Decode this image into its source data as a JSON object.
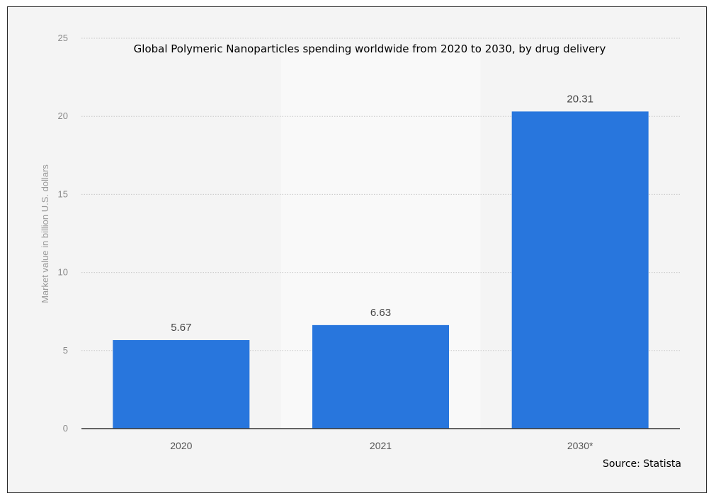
{
  "chart_data": {
    "type": "bar",
    "title": "Global Polymeric Nanoparticles spending worldwide from 2020 to 2030, by drug delivery",
    "xlabel": "",
    "ylabel": "Market value in billion U.S. dollars",
    "categories": [
      "2020",
      "2021",
      "2030*"
    ],
    "values": [
      5.67,
      6.63,
      20.31
    ],
    "data_labels": [
      "5.67",
      "6.63",
      "20.31"
    ],
    "ylim": [
      0,
      25
    ],
    "yticks": [
      "0",
      "5",
      "10",
      "15",
      "20",
      "25"
    ],
    "grid": "horizontal dotted",
    "bar_color": "#2876dd",
    "highlight_band_category": "2021",
    "source": "Source: Statista"
  }
}
